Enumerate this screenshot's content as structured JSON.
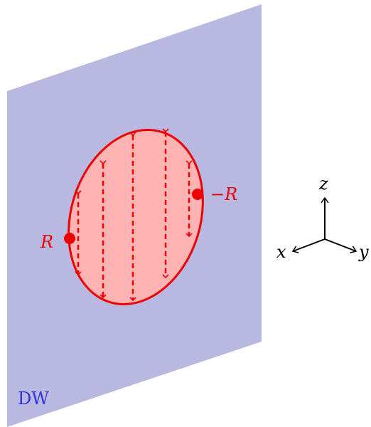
{
  "diagram": {
    "wall": {
      "label": "DW",
      "fill_color": "#b8b8e0",
      "label_color": "#3333dd"
    },
    "region": {
      "fill_color": "#ffb3b3",
      "stroke_color": "#ee0000"
    },
    "points": {
      "left": {
        "label": "R",
        "color": "#ee0000"
      },
      "right": {
        "label": "−R",
        "color": "#ee0000"
      }
    },
    "axes": {
      "z_label": "z",
      "x_label": "x",
      "y_label": "y",
      "color": "#000000"
    }
  }
}
